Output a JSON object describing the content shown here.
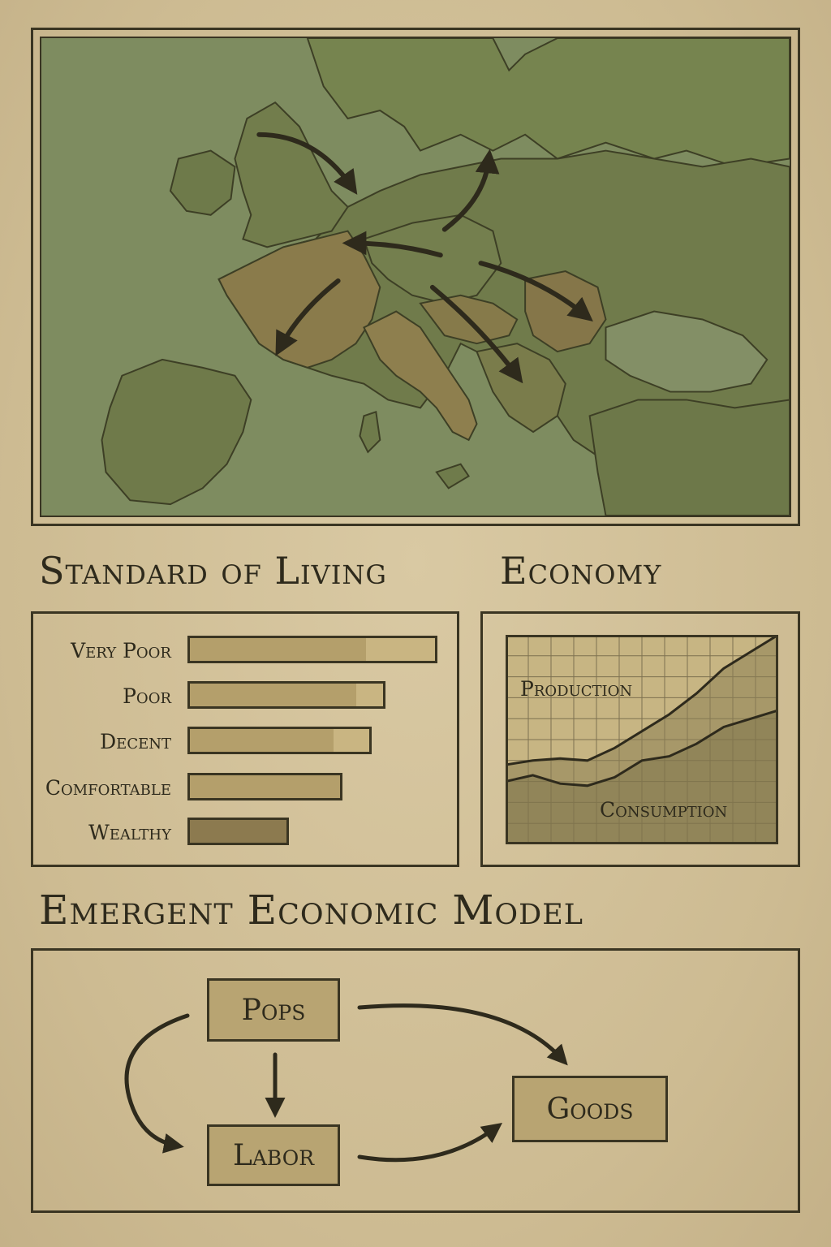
{
  "map": {
    "colors": {
      "sea": "#7e8c60",
      "land": "#6f7b4c",
      "highlight": "#8e7d4c",
      "border": "#3d3f25",
      "arrow": "#2e2a1c"
    },
    "arrows": 6
  },
  "standard_of_living": {
    "title": "Standard of Living",
    "rows": [
      {
        "label": "Very Poor",
        "level": 1.0
      },
      {
        "label": "Poor",
        "level": 0.73
      },
      {
        "label": "Decent",
        "level": 0.66
      },
      {
        "label": "Comfortable",
        "level": 0.51
      },
      {
        "label": "Wealthy",
        "level": 0.23
      }
    ]
  },
  "economy": {
    "title": "Economy",
    "production_label": "Production",
    "consumption_label": "Consumption",
    "chart_data": {
      "type": "area",
      "title": "",
      "xlabel": "",
      "ylabel": "",
      "grid": true,
      "x": [
        0,
        1,
        2,
        3,
        4,
        5,
        6,
        7,
        8,
        9,
        10
      ],
      "ylim": [
        0,
        100
      ],
      "series": [
        {
          "name": "Production",
          "values": [
            38,
            40,
            41,
            40,
            46,
            54,
            62,
            72,
            84,
            92,
            100
          ]
        },
        {
          "name": "Consumption",
          "values": [
            30,
            33,
            29,
            28,
            32,
            40,
            42,
            48,
            56,
            60,
            64
          ]
        }
      ]
    }
  },
  "model": {
    "title": "Emergent Economic Model",
    "nodes": {
      "pops": "Pops",
      "labor": "Labor",
      "goods": "Goods"
    }
  }
}
